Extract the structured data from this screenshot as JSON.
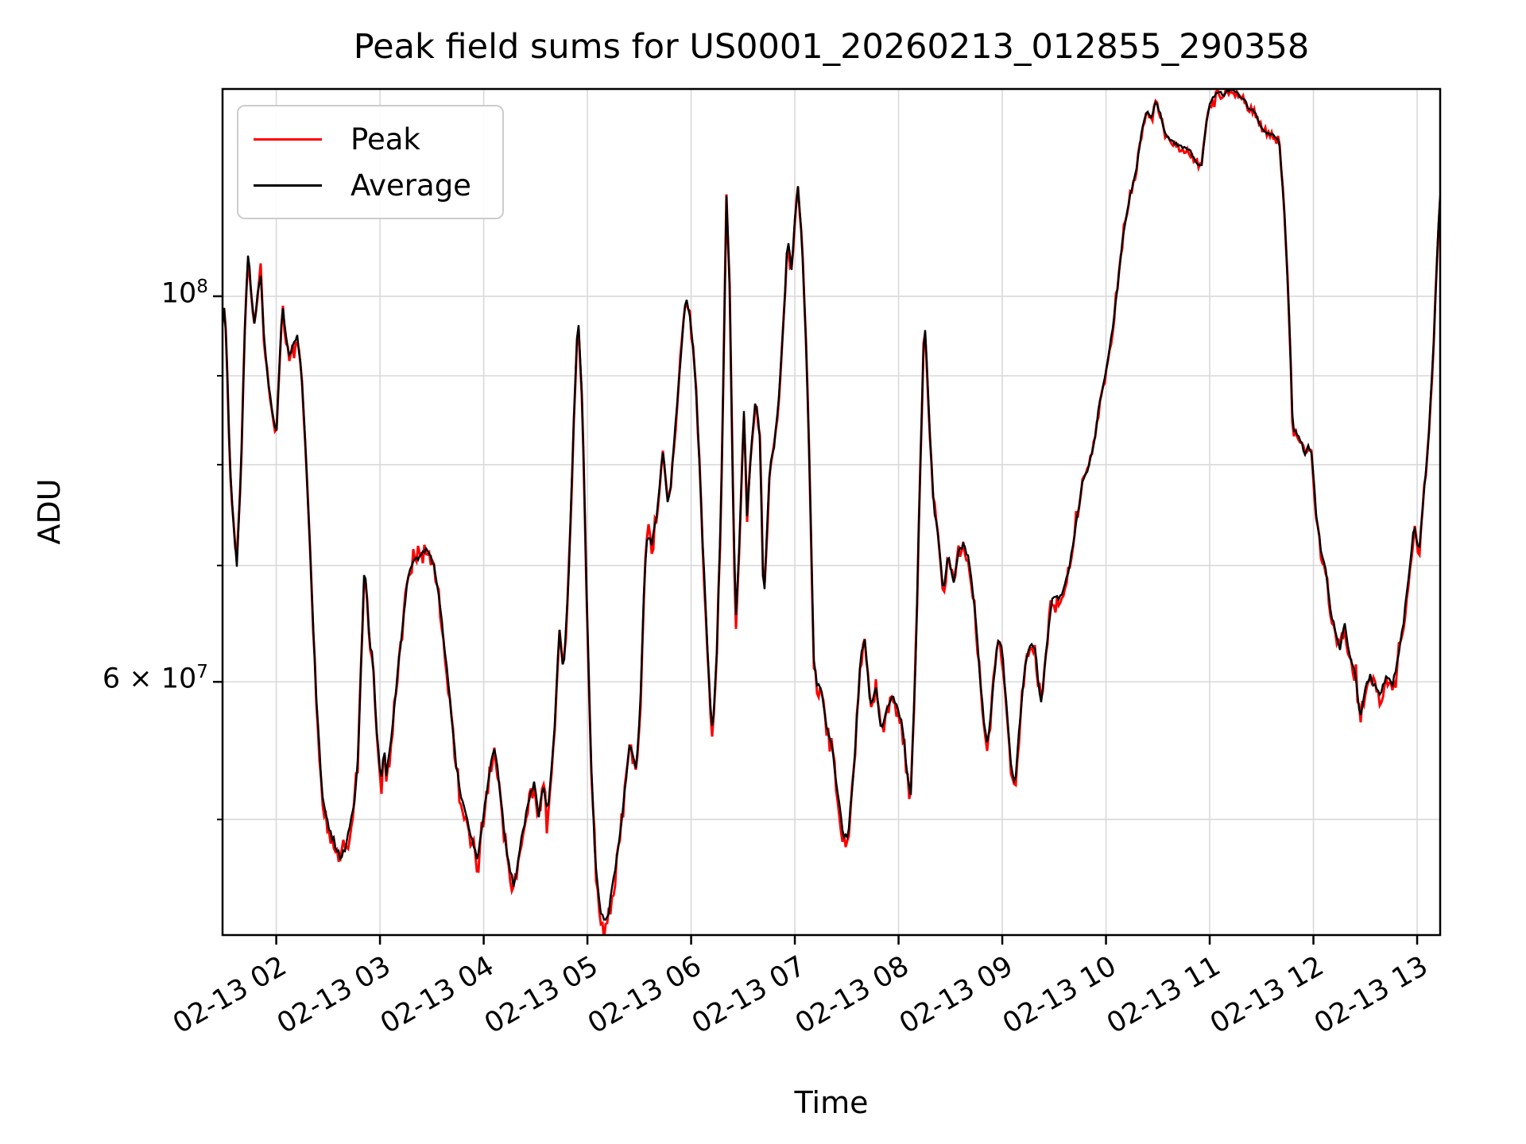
{
  "chart_data": {
    "type": "line",
    "title": "Peak field sums for US0001_20260213_012855_290358",
    "xlabel": "Time",
    "ylabel": "ADU",
    "yscale": "log",
    "grid": true,
    "legend_position": "upper left",
    "xlim_hours": [
      1.482,
      13.222
    ],
    "ylim": [
      42900000,
      131600000
    ],
    "x_ticks": [
      {
        "hour": 2,
        "label": "02-13 02"
      },
      {
        "hour": 3,
        "label": "02-13 03"
      },
      {
        "hour": 4,
        "label": "02-13 04"
      },
      {
        "hour": 5,
        "label": "02-13 05"
      },
      {
        "hour": 6,
        "label": "02-13 06"
      },
      {
        "hour": 7,
        "label": "02-13 07"
      },
      {
        "hour": 8,
        "label": "02-13 08"
      },
      {
        "hour": 9,
        "label": "02-13 09"
      },
      {
        "hour": 10,
        "label": "02-13 10"
      },
      {
        "hour": 11,
        "label": "02-13 11"
      },
      {
        "hour": 12,
        "label": "02-13 12"
      },
      {
        "hour": 13,
        "label": "02-13 13"
      }
    ],
    "y_ticks_major": [
      {
        "value": 100000000,
        "label": "10^8"
      },
      {
        "value": 60000000,
        "label": "6 × 10^7"
      }
    ],
    "y_ticks_minor": [
      50000000,
      70000000,
      80000000,
      90000000
    ],
    "colors": {
      "peak": "#ff0000",
      "average": "#000000",
      "grid": "#d9d9d9",
      "axes": "#000000",
      "legend_border": "#cccccc"
    },
    "series": [
      {
        "name": "Peak",
        "color": "#ff0000",
        "note": "noisy, nearly identical to Average, drawn beneath"
      },
      {
        "name": "Average",
        "color": "#000000",
        "note": "smoother, drawn on top"
      }
    ],
    "value_unit": 10000000,
    "anchors_note": "shared shape for both series: [decimal hour on 02-13, ADU in units of 1e7]",
    "anchors": [
      [
        1.48,
        9.6
      ],
      [
        1.5,
        9.9
      ],
      [
        1.52,
        9.35
      ],
      [
        1.55,
        8.1
      ],
      [
        1.58,
        7.5
      ],
      [
        1.62,
        7.0
      ],
      [
        1.66,
        7.9
      ],
      [
        1.7,
        9.7
      ],
      [
        1.73,
        10.65
      ],
      [
        1.76,
        10.0
      ],
      [
        1.79,
        9.6
      ],
      [
        1.82,
        10.05
      ],
      [
        1.85,
        10.3
      ],
      [
        1.88,
        9.5
      ],
      [
        1.92,
        8.95
      ],
      [
        1.96,
        8.6
      ],
      [
        2.0,
        8.3
      ],
      [
        2.03,
        9.1
      ],
      [
        2.06,
        9.9
      ],
      [
        2.09,
        9.5
      ],
      [
        2.12,
        9.25
      ],
      [
        2.16,
        9.35
      ],
      [
        2.2,
        9.5
      ],
      [
        2.24,
        9.1
      ],
      [
        2.29,
        8.0
      ],
      [
        2.34,
        6.8
      ],
      [
        2.39,
        5.8
      ],
      [
        2.44,
        5.2
      ],
      [
        2.49,
        5.0
      ],
      [
        2.53,
        4.9
      ],
      [
        2.58,
        4.82
      ],
      [
        2.62,
        4.75
      ],
      [
        2.67,
        4.82
      ],
      [
        2.71,
        4.95
      ],
      [
        2.75,
        5.1
      ],
      [
        2.79,
        5.45
      ],
      [
        2.82,
        6.2
      ],
      [
        2.85,
        7.0
      ],
      [
        2.87,
        6.75
      ],
      [
        2.9,
        6.3
      ],
      [
        2.93,
        6.2
      ],
      [
        2.97,
        5.6
      ],
      [
        3.01,
        5.25
      ],
      [
        3.04,
        5.5
      ],
      [
        3.06,
        5.3
      ],
      [
        3.1,
        5.5
      ],
      [
        3.15,
        5.9
      ],
      [
        3.21,
        6.4
      ],
      [
        3.27,
        6.9
      ],
      [
        3.33,
        7.05
      ],
      [
        3.4,
        7.1
      ],
      [
        3.46,
        7.15
      ],
      [
        3.52,
        7.0
      ],
      [
        3.57,
        6.7
      ],
      [
        3.62,
        6.3
      ],
      [
        3.67,
        5.9
      ],
      [
        3.73,
        5.4
      ],
      [
        3.79,
        5.12
      ],
      [
        3.86,
        4.95
      ],
      [
        3.94,
        4.73
      ],
      [
        4.0,
        5.05
      ],
      [
        4.06,
        5.35
      ],
      [
        4.11,
        5.5
      ],
      [
        4.16,
        5.15
      ],
      [
        4.22,
        4.8
      ],
      [
        4.29,
        4.56
      ],
      [
        4.36,
        4.85
      ],
      [
        4.43,
        5.12
      ],
      [
        4.49,
        5.26
      ],
      [
        4.53,
        5.03
      ],
      [
        4.57,
        5.22
      ],
      [
        4.62,
        5.06
      ],
      [
        4.68,
        5.6
      ],
      [
        4.73,
        6.43
      ],
      [
        4.77,
        6.07
      ],
      [
        4.82,
        6.9
      ],
      [
        4.87,
        8.5
      ],
      [
        4.91,
        9.77
      ],
      [
        4.95,
        8.7
      ],
      [
        4.99,
        6.8
      ],
      [
        5.03,
        5.5
      ],
      [
        5.07,
        4.8
      ],
      [
        5.11,
        4.5
      ],
      [
        5.15,
        4.37
      ],
      [
        5.2,
        4.4
      ],
      [
        5.25,
        4.6
      ],
      [
        5.3,
        4.85
      ],
      [
        5.35,
        5.1
      ],
      [
        5.4,
        5.5
      ],
      [
        5.44,
        5.45
      ],
      [
        5.47,
        5.33
      ],
      [
        5.51,
        5.8
      ],
      [
        5.55,
        6.9
      ],
      [
        5.58,
        7.3
      ],
      [
        5.62,
        7.2
      ],
      [
        5.67,
        7.5
      ],
      [
        5.73,
        8.17
      ],
      [
        5.77,
        7.6
      ],
      [
        5.8,
        7.7
      ],
      [
        5.84,
        8.3
      ],
      [
        5.88,
        8.9
      ],
      [
        5.92,
        9.55
      ],
      [
        5.95,
        10.0
      ],
      [
        5.99,
        9.7
      ],
      [
        6.03,
        9.2
      ],
      [
        6.07,
        8.3
      ],
      [
        6.11,
        7.25
      ],
      [
        6.15,
        6.4
      ],
      [
        6.18,
        5.85
      ],
      [
        6.21,
        5.6
      ],
      [
        6.25,
        6.3
      ],
      [
        6.29,
        7.6
      ],
      [
        6.32,
        9.6
      ],
      [
        6.34,
        11.45
      ],
      [
        6.37,
        10.2
      ],
      [
        6.4,
        7.9
      ],
      [
        6.43,
        6.5
      ],
      [
        6.47,
        7.3
      ],
      [
        6.51,
        8.6
      ],
      [
        6.54,
        7.45
      ],
      [
        6.58,
        8.2
      ],
      [
        6.62,
        8.7
      ],
      [
        6.66,
        8.4
      ],
      [
        6.7,
        6.6
      ],
      [
        6.73,
        7.3
      ],
      [
        6.76,
        8.0
      ],
      [
        6.8,
        8.2
      ],
      [
        6.85,
        8.8
      ],
      [
        6.9,
        9.9
      ],
      [
        6.93,
        10.8
      ],
      [
        6.97,
        10.35
      ],
      [
        7.0,
        11.1
      ],
      [
        7.03,
        11.55
      ],
      [
        7.07,
        10.7
      ],
      [
        7.11,
        9.3
      ],
      [
        7.15,
        7.6
      ],
      [
        7.18,
        6.2
      ],
      [
        7.21,
        6.0
      ],
      [
        7.26,
        5.9
      ],
      [
        7.31,
        5.65
      ],
      [
        7.36,
        5.5
      ],
      [
        7.41,
        5.2
      ],
      [
        7.46,
        4.92
      ],
      [
        7.51,
        4.86
      ],
      [
        7.57,
        5.35
      ],
      [
        7.63,
        6.15
      ],
      [
        7.67,
        6.37
      ],
      [
        7.73,
        5.8
      ],
      [
        7.78,
        5.98
      ],
      [
        7.83,
        5.63
      ],
      [
        7.88,
        5.75
      ],
      [
        7.93,
        5.9
      ],
      [
        7.98,
        5.82
      ],
      [
        8.03,
        5.7
      ],
      [
        8.08,
        5.35
      ],
      [
        8.12,
        5.15
      ],
      [
        8.17,
        6.3
      ],
      [
        8.21,
        8.0
      ],
      [
        8.25,
        9.75
      ],
      [
        8.3,
        8.4
      ],
      [
        8.34,
        7.55
      ],
      [
        8.38,
        7.3
      ],
      [
        8.43,
        6.75
      ],
      [
        8.48,
        7.1
      ],
      [
        8.53,
        6.85
      ],
      [
        8.58,
        7.15
      ],
      [
        8.63,
        7.2
      ],
      [
        8.68,
        7.05
      ],
      [
        8.73,
        6.65
      ],
      [
        8.78,
        6.1
      ],
      [
        8.82,
        5.7
      ],
      [
        8.86,
        5.5
      ],
      [
        8.91,
        5.95
      ],
      [
        8.96,
        6.35
      ],
      [
        9.0,
        6.25
      ],
      [
        9.05,
        5.7
      ],
      [
        9.09,
        5.35
      ],
      [
        9.12,
        5.22
      ],
      [
        9.17,
        5.7
      ],
      [
        9.22,
        6.15
      ],
      [
        9.27,
        6.3
      ],
      [
        9.32,
        6.25
      ],
      [
        9.37,
        5.8
      ],
      [
        9.43,
        6.3
      ],
      [
        9.48,
        6.72
      ],
      [
        9.53,
        6.7
      ],
      [
        9.58,
        6.75
      ],
      [
        9.63,
        6.9
      ],
      [
        9.68,
        7.2
      ],
      [
        9.73,
        7.5
      ],
      [
        9.78,
        7.85
      ],
      [
        9.83,
        7.95
      ],
      [
        9.88,
        8.2
      ],
      [
        9.94,
        8.7
      ],
      [
        10.0,
        9.05
      ],
      [
        10.06,
        9.55
      ],
      [
        10.11,
        10.1
      ],
      [
        10.17,
        10.9
      ],
      [
        10.23,
        11.4
      ],
      [
        10.29,
        11.8
      ],
      [
        10.35,
        12.5
      ],
      [
        10.4,
        12.8
      ],
      [
        10.44,
        12.65
      ],
      [
        10.48,
        12.97
      ],
      [
        10.53,
        12.7
      ],
      [
        10.58,
        12.35
      ],
      [
        10.64,
        12.28
      ],
      [
        10.7,
        12.2
      ],
      [
        10.76,
        12.18
      ],
      [
        10.82,
        12.1
      ],
      [
        10.87,
        11.95
      ],
      [
        10.92,
        11.87
      ],
      [
        10.96,
        12.5
      ],
      [
        11.0,
        12.9
      ],
      [
        11.05,
        13.05
      ],
      [
        11.09,
        13.12
      ],
      [
        11.13,
        13.05
      ],
      [
        11.18,
        13.14
      ],
      [
        11.23,
        13.15
      ],
      [
        11.28,
        13.05
      ],
      [
        11.33,
        13.0
      ],
      [
        11.38,
        12.8
      ],
      [
        11.42,
        12.82
      ],
      [
        11.47,
        12.6
      ],
      [
        11.52,
        12.45
      ],
      [
        11.57,
        12.4
      ],
      [
        11.61,
        12.38
      ],
      [
        11.67,
        12.27
      ],
      [
        11.72,
        11.2
      ],
      [
        11.77,
        9.6
      ],
      [
        11.8,
        8.4
      ],
      [
        11.84,
        8.35
      ],
      [
        11.88,
        8.25
      ],
      [
        11.92,
        8.1
      ],
      [
        11.95,
        8.2
      ],
      [
        11.98,
        8.15
      ],
      [
        12.03,
        7.45
      ],
      [
        12.08,
        7.1
      ],
      [
        12.12,
        6.95
      ],
      [
        12.17,
        6.55
      ],
      [
        12.22,
        6.4
      ],
      [
        12.26,
        6.27
      ],
      [
        12.3,
        6.5
      ],
      [
        12.35,
        6.2
      ],
      [
        12.4,
        6.07
      ],
      [
        12.45,
        5.73
      ],
      [
        12.5,
        5.95
      ],
      [
        12.55,
        6.05
      ],
      [
        12.6,
        5.95
      ],
      [
        12.64,
        5.88
      ],
      [
        12.7,
        6.05
      ],
      [
        12.76,
        5.97
      ],
      [
        12.82,
        6.2
      ],
      [
        12.87,
        6.5
      ],
      [
        12.93,
        6.97
      ],
      [
        12.97,
        7.4
      ],
      [
        13.02,
        7.12
      ],
      [
        13.07,
        7.78
      ],
      [
        13.11,
        8.25
      ],
      [
        13.16,
        9.4
      ],
      [
        13.2,
        10.8
      ],
      [
        13.22,
        11.4
      ]
    ]
  }
}
